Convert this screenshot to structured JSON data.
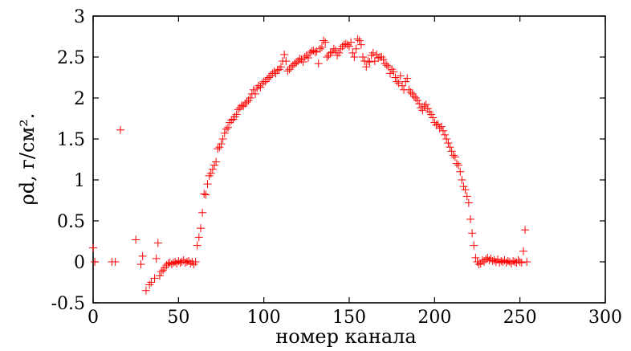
{
  "chart_data": {
    "type": "scatter",
    "title": "",
    "xlabel": "номер канала",
    "ylabel": "ρd, г/см².",
    "xlim": [
      0,
      300
    ],
    "ylim": [
      -0.5,
      3
    ],
    "x_ticks": [
      0,
      50,
      100,
      150,
      200,
      250,
      300
    ],
    "y_ticks": [
      -0.5,
      0,
      0.5,
      1,
      1.5,
      2,
      2.5,
      3
    ],
    "x_tick_labels": [
      "0",
      "50",
      "100",
      "150",
      "200",
      "250",
      "300"
    ],
    "y_tick_labels": [
      "-0.5",
      "0",
      "0.5",
      "1",
      "1.5",
      "2",
      "2.5",
      "3"
    ],
    "grid": false,
    "marker": "+",
    "marker_color": "#ff0000",
    "series": [
      {
        "points": [
          [
            0,
            0.17
          ],
          [
            1,
            0
          ],
          [
            11,
            0
          ],
          [
            13,
            0
          ],
          [
            16,
            1.61
          ],
          [
            25,
            0.27
          ],
          [
            28,
            -0.03
          ],
          [
            29,
            0.07
          ],
          [
            31,
            -0.35
          ],
          [
            33,
            -0.28
          ],
          [
            34,
            -0.25
          ],
          [
            36,
            -0.2
          ],
          [
            37,
            0.04
          ],
          [
            38,
            0.23
          ],
          [
            39,
            -0.17
          ],
          [
            40,
            -0.12
          ],
          [
            41,
            -0.1
          ],
          [
            42,
            -0.07
          ],
          [
            43,
            -0.04
          ],
          [
            44,
            -0.02
          ],
          [
            45,
            -0.01
          ],
          [
            46,
            -0.03
          ],
          [
            47,
            -0.01
          ],
          [
            48,
            0
          ],
          [
            49,
            -0.02
          ],
          [
            50,
            0.01
          ],
          [
            51,
            -0.01
          ],
          [
            52,
            0
          ],
          [
            53,
            0.02
          ],
          [
            54,
            -0.01
          ],
          [
            55,
            0
          ],
          [
            56,
            0.01
          ],
          [
            57,
            -0.02
          ],
          [
            58,
            0
          ],
          [
            59,
            -0.03
          ],
          [
            60,
            0
          ],
          [
            61,
            0.2
          ],
          [
            62,
            0.3
          ],
          [
            63,
            0.41
          ],
          [
            64,
            0.6
          ],
          [
            65,
            0.83
          ],
          [
            66,
            0.82
          ],
          [
            67,
            0.95
          ],
          [
            68,
            1.05
          ],
          [
            69,
            1.08
          ],
          [
            70,
            1.13
          ],
          [
            71,
            1.18
          ],
          [
            72,
            1.22
          ],
          [
            73,
            1.38
          ],
          [
            74,
            1.4
          ],
          [
            75,
            1.44
          ],
          [
            76,
            1.5
          ],
          [
            77,
            1.57
          ],
          [
            78,
            1.62
          ],
          [
            79,
            1.64
          ],
          [
            80,
            1.7
          ],
          [
            81,
            1.73
          ],
          [
            82,
            1.74
          ],
          [
            83,
            1.77
          ],
          [
            84,
            1.8
          ],
          [
            85,
            1.86
          ],
          [
            86,
            1.88
          ],
          [
            87,
            1.91
          ],
          [
            88,
            1.9
          ],
          [
            89,
            1.93
          ],
          [
            90,
            1.95
          ],
          [
            91,
            1.97
          ],
          [
            92,
            2.0
          ],
          [
            93,
            2.05
          ],
          [
            94,
            2.1
          ],
          [
            95,
            2.05
          ],
          [
            96,
            2.12
          ],
          [
            97,
            2.15
          ],
          [
            98,
            2.13
          ],
          [
            99,
            2.18
          ],
          [
            100,
            2.2
          ],
          [
            101,
            2.2
          ],
          [
            102,
            2.23
          ],
          [
            103,
            2.25
          ],
          [
            104,
            2.27
          ],
          [
            105,
            2.3
          ],
          [
            106,
            2.32
          ],
          [
            107,
            2.3
          ],
          [
            108,
            2.34
          ],
          [
            109,
            2.35
          ],
          [
            110,
            2.38
          ],
          [
            111,
            2.45
          ],
          [
            112,
            2.53
          ],
          [
            113,
            2.45
          ],
          [
            114,
            2.33
          ],
          [
            115,
            2.35
          ],
          [
            116,
            2.38
          ],
          [
            117,
            2.4
          ],
          [
            118,
            2.42
          ],
          [
            119,
            2.43
          ],
          [
            120,
            2.45
          ],
          [
            121,
            2.48
          ],
          [
            122,
            2.47
          ],
          [
            123,
            2.44
          ],
          [
            124,
            2.5
          ],
          [
            125,
            2.52
          ],
          [
            126,
            2.49
          ],
          [
            127,
            2.55
          ],
          [
            128,
            2.57
          ],
          [
            129,
            2.58
          ],
          [
            130,
            2.56
          ],
          [
            131,
            2.57
          ],
          [
            132,
            2.42
          ],
          [
            133,
            2.6
          ],
          [
            134,
            2.62
          ],
          [
            135,
            2.7
          ],
          [
            136,
            2.68
          ],
          [
            137,
            2.5
          ],
          [
            138,
            2.52
          ],
          [
            139,
            2.55
          ],
          [
            140,
            2.56
          ],
          [
            141,
            2.6
          ],
          [
            142,
            2.58
          ],
          [
            143,
            2.52
          ],
          [
            144,
            2.55
          ],
          [
            145,
            2.6
          ],
          [
            146,
            2.63
          ],
          [
            147,
            2.65
          ],
          [
            148,
            2.66
          ],
          [
            149,
            2.65
          ],
          [
            150,
            2.63
          ],
          [
            151,
            2.68
          ],
          [
            152,
            2.55
          ],
          [
            153,
            2.5
          ],
          [
            154,
            2.6
          ],
          [
            155,
            2.72
          ],
          [
            156,
            2.7
          ],
          [
            157,
            2.65
          ],
          [
            158,
            2.5
          ],
          [
            159,
            2.45
          ],
          [
            160,
            2.38
          ],
          [
            161,
            2.45
          ],
          [
            162,
            2.44
          ],
          [
            163,
            2.52
          ],
          [
            164,
            2.55
          ],
          [
            165,
            2.45
          ],
          [
            166,
            2.53
          ],
          [
            167,
            2.49
          ],
          [
            168,
            2.5
          ],
          [
            169,
            2.5
          ],
          [
            170,
            2.47
          ],
          [
            171,
            2.42
          ],
          [
            172,
            2.4
          ],
          [
            173,
            2.38
          ],
          [
            174,
            2.3
          ],
          [
            175,
            2.35
          ],
          [
            176,
            2.32
          ],
          [
            177,
            2.25
          ],
          [
            178,
            2.2
          ],
          [
            179,
            2.18
          ],
          [
            180,
            2.27
          ],
          [
            181,
            2.15
          ],
          [
            182,
            2.1
          ],
          [
            183,
            2.2
          ],
          [
            184,
            2.24
          ],
          [
            185,
            2.1
          ],
          [
            186,
            2.07
          ],
          [
            187,
            2.05
          ],
          [
            188,
            2.02
          ],
          [
            189,
            2.0
          ],
          [
            190,
            1.97
          ],
          [
            191,
            1.93
          ],
          [
            192,
            1.88
          ],
          [
            193,
            1.85
          ],
          [
            194,
            1.9
          ],
          [
            195,
            1.92
          ],
          [
            196,
            1.87
          ],
          [
            197,
            1.83
          ],
          [
            198,
            1.8
          ],
          [
            199,
            1.76
          ],
          [
            200,
            1.7
          ],
          [
            201,
            1.67
          ],
          [
            202,
            1.68
          ],
          [
            203,
            1.63
          ],
          [
            204,
            1.65
          ],
          [
            205,
            1.6
          ],
          [
            206,
            1.55
          ],
          [
            207,
            1.5
          ],
          [
            208,
            1.45
          ],
          [
            209,
            1.4
          ],
          [
            210,
            1.35
          ],
          [
            211,
            1.3
          ],
          [
            212,
            1.28
          ],
          [
            213,
            1.2
          ],
          [
            214,
            1.18
          ],
          [
            215,
            1.1
          ],
          [
            216,
            1.0
          ],
          [
            217,
            0.92
          ],
          [
            218,
            0.88
          ],
          [
            219,
            0.8
          ],
          [
            220,
            0.72
          ],
          [
            221,
            0.52
          ],
          [
            222,
            0.35
          ],
          [
            223,
            0.2
          ],
          [
            224,
            0.05
          ],
          [
            225,
            0.0
          ],
          [
            226,
            -0.03
          ],
          [
            227,
            -0.02
          ],
          [
            228,
            0.02
          ],
          [
            229,
            0.0
          ],
          [
            230,
            0.03
          ],
          [
            231,
            0.05
          ],
          [
            232,
            0.02
          ],
          [
            233,
            0.04
          ],
          [
            234,
            0.01
          ],
          [
            235,
            0.02
          ],
          [
            236,
            0.0
          ],
          [
            237,
            0.03
          ],
          [
            238,
            -0.01
          ],
          [
            239,
            0.01
          ],
          [
            240,
            0.0
          ],
          [
            241,
            0.02
          ],
          [
            242,
            -0.01
          ],
          [
            243,
            0.01
          ],
          [
            244,
            0.0
          ],
          [
            245,
            -0.02
          ],
          [
            246,
            0.01
          ],
          [
            247,
            0.0
          ],
          [
            248,
            -0.01
          ],
          [
            249,
            0.02
          ],
          [
            250,
            0.0
          ],
          [
            251,
            -0.01
          ],
          [
            252,
            0.13
          ],
          [
            253,
            0.39
          ],
          [
            254,
            0.0
          ]
        ]
      }
    ]
  }
}
